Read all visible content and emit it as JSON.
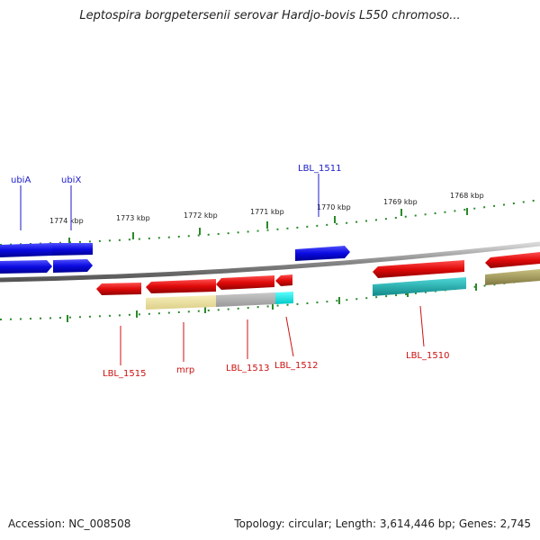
{
  "title": "Leptospira borgpetersenii serovar Hardjo-bovis L550 chromoso...",
  "accession": "Accession: NC_008508",
  "topology": "Topology: circular; Length: 3,614,446 bp; Genes: 2,745",
  "ruler_labels": [
    "1774 kbp",
    "1773 kbp",
    "1772 kbp",
    "1771 kbp",
    "1770 kbp",
    "1769 kbp",
    "1768 kbp"
  ],
  "gene_labels_top": [
    "ubiA",
    "ubiX",
    "LBL_1511"
  ],
  "gene_labels_bottom": [
    "LBL_1515",
    "mrp",
    "LBL_1513",
    "LBL_1512",
    "LBL_1510"
  ],
  "colors": {
    "forward_gene": "#1010e0",
    "reverse_gene": "#e01010",
    "feature_cds_yellow": "#f0e6a0",
    "feature_cds_grey": "#b0b0b0",
    "feature_cyan": "#00e6e6",
    "feature_teal": "#20b8b8",
    "feature_olive": "#a8a060",
    "tick_green": "#2a8a2a",
    "label_blue": "#1a1acc",
    "label_red": "#cc1111"
  }
}
